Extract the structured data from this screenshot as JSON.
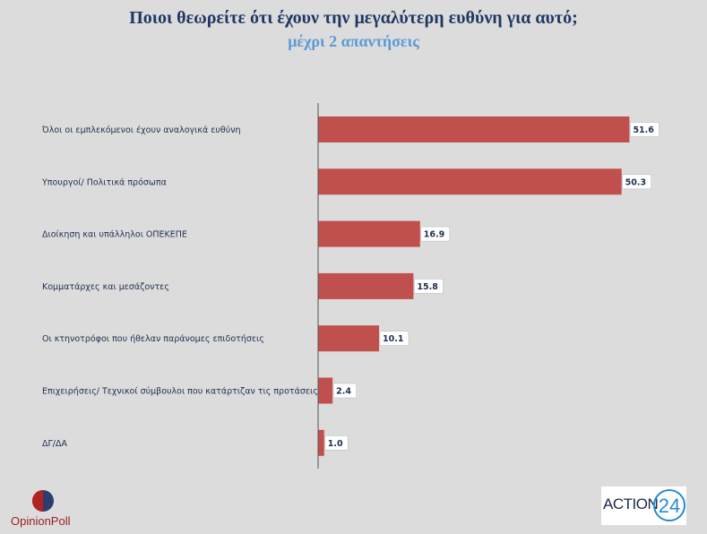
{
  "header": {
    "title": "Ποιοι θεωρείτε ότι έχουν την μεγαλύτερη ευθύνη για αυτό;",
    "subtitle": "μέχρι 2 απαντήσεις"
  },
  "chart_data": {
    "type": "bar",
    "orientation": "horizontal",
    "categories": [
      "Όλοι οι εμπλεκόμενοι έχουν αναλογικά ευθύνη",
      "Υπουργοί/ Πολιτικά πρόσωπα",
      "Διοίκηση και υπάλληλοι ΟΠΕΚΕΠΕ",
      "Κομματάρχες και μεσάζοντες",
      "Οι κτηνοτρόφοι που ήθελαν παράνομες επιδοτήσεις",
      "Επιχειρήσεις/ Τεχνικοί σύμβουλοι που κατάρτιζαν τις προτάσεις",
      "ΔΓ/ΔΑ"
    ],
    "values": [
      51.6,
      50.3,
      16.9,
      15.8,
      10.1,
      2.4,
      1.0
    ],
    "value_labels": [
      "51.6",
      "50.3",
      "16.9",
      "15.8",
      "10.1",
      "2.4",
      "1.0"
    ],
    "xlim": [
      0,
      60
    ],
    "bar_color": "#c0504d",
    "grid": false,
    "data_labels": true
  },
  "logos": {
    "left_text": "OpinionPoll",
    "right_text": "ACTION",
    "right_number": "24"
  }
}
